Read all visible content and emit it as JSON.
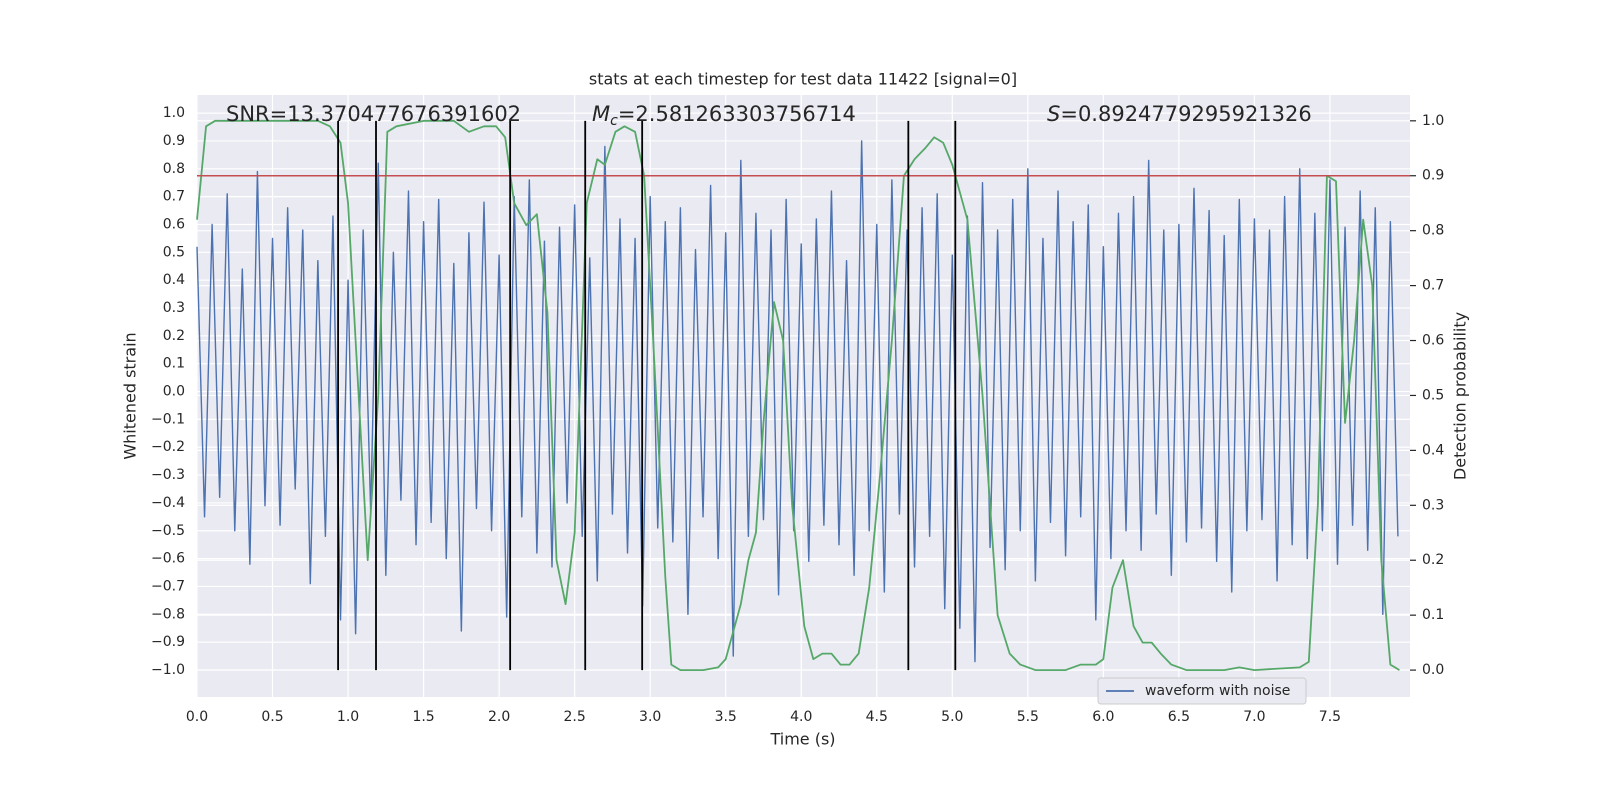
{
  "chart_data": {
    "type": "line",
    "title": "stats at each timestep for test data 11422 [signal=0]",
    "xlabel": "Time (s)",
    "ylabel": "Whitened strain",
    "y2label": "Detection probability",
    "grid": true,
    "legend": "lower right",
    "xlim": [
      0,
      8.03
    ],
    "ylim": [
      -1.097,
      1.065
    ],
    "y2lim": [
      -0.049,
      1.047
    ],
    "xticks": [
      {
        "value": 0,
        "label": "0.0"
      },
      0.5,
      {
        "value": 1,
        "label": "1.0"
      },
      1.5,
      {
        "value": 2,
        "label": "2.0"
      },
      2.5,
      {
        "value": 3,
        "label": "3.0"
      },
      3.5,
      {
        "value": 4,
        "label": "4.0"
      },
      4.5,
      {
        "value": 5,
        "label": "5.0"
      },
      5.5,
      {
        "value": 6,
        "label": "6.0"
      },
      6.5,
      {
        "value": 7,
        "label": "7.0"
      },
      7.5
    ],
    "yticks": [
      {
        "value": -1,
        "label": "−1.0"
      },
      {
        "value": -0.9,
        "label": "−0.9"
      },
      {
        "value": -0.8,
        "label": "−0.8"
      },
      {
        "value": -0.7,
        "label": "−0.7"
      },
      {
        "value": -0.6,
        "label": "−0.6"
      },
      {
        "value": -0.5,
        "label": "−0.5"
      },
      {
        "value": -0.4,
        "label": "−0.4"
      },
      {
        "value": -0.3,
        "label": "−0.3"
      },
      {
        "value": -0.2,
        "label": "−0.2"
      },
      {
        "value": -0.1,
        "label": "−0.1"
      },
      {
        "value": 0,
        "label": "0.0"
      },
      0.1,
      0.2,
      0.3,
      0.4,
      0.5,
      0.6,
      0.7,
      0.8,
      0.9,
      {
        "value": 1,
        "label": "1.0"
      }
    ],
    "y2ticks": [
      {
        "value": 0,
        "label": "0.0"
      },
      0.1,
      0.2,
      0.3,
      0.4,
      0.5,
      0.6,
      0.7,
      0.8,
      0.9,
      {
        "value": 1,
        "label": "1.0"
      }
    ],
    "threshold": 0.9,
    "threshold_color": "#c44e52",
    "vlines": [
      0.934,
      1.185,
      2.073,
      2.57,
      2.947,
      4.709,
      5.02
    ],
    "vline_color": "#000000",
    "annotations": [
      {
        "text": "SNR=13.370477676391602"
      },
      {
        "symbol": "M",
        "subscript": "c",
        "text": "=2.581263303756714"
      },
      {
        "symbol": "S",
        "text": "=0.8924779295921326"
      }
    ],
    "series": [
      {
        "name": "waveform with noise",
        "color": "#4c72b0",
        "x": [
          0,
          0.05,
          0.1,
          0.15,
          0.2,
          0.25,
          0.3,
          0.35,
          0.4,
          0.45,
          0.5,
          0.55,
          0.6,
          0.65,
          0.7,
          0.75,
          0.8,
          0.85,
          0.9,
          0.95,
          1,
          1.05,
          1.1,
          1.15,
          1.2,
          1.25,
          1.3,
          1.35,
          1.4,
          1.45,
          1.5,
          1.55,
          1.6,
          1.65,
          1.7,
          1.75,
          1.8,
          1.85,
          1.9,
          1.95,
          2,
          2.05,
          2.1,
          2.15,
          2.2,
          2.25,
          2.3,
          2.35,
          2.4,
          2.45,
          2.5,
          2.55,
          2.6,
          2.65,
          2.7,
          2.75,
          2.8,
          2.85,
          2.9,
          2.95,
          3,
          3.05,
          3.1,
          3.15,
          3.2,
          3.25,
          3.3,
          3.35,
          3.4,
          3.45,
          3.5,
          3.55,
          3.6,
          3.65,
          3.7,
          3.75,
          3.8,
          3.85,
          3.9,
          3.95,
          4,
          4.05,
          4.1,
          4.15,
          4.2,
          4.25,
          4.3,
          4.35,
          4.4,
          4.45,
          4.5,
          4.55,
          4.6,
          4.65,
          4.7,
          4.75,
          4.8,
          4.85,
          4.9,
          4.95,
          5,
          5.05,
          5.1,
          5.15,
          5.2,
          5.25,
          5.3,
          5.35,
          5.4,
          5.45,
          5.5,
          5.55,
          5.6,
          5.65,
          5.7,
          5.75,
          5.8,
          5.85,
          5.9,
          5.95,
          6,
          6.05,
          6.1,
          6.15,
          6.2,
          6.25,
          6.3,
          6.35,
          6.4,
          6.45,
          6.5,
          6.55,
          6.6,
          6.65,
          6.7,
          6.75,
          6.8,
          6.85,
          6.9,
          6.95,
          7,
          7.05,
          7.1,
          7.15,
          7.2,
          7.25,
          7.3,
          7.35,
          7.4,
          7.45,
          7.5,
          7.55,
          7.6,
          7.65,
          7.7,
          7.75,
          7.8,
          7.85,
          7.9,
          7.95
        ],
        "values": [
          0.52,
          -0.45,
          0.6,
          -0.38,
          0.71,
          -0.5,
          0.44,
          -0.62,
          0.79,
          -0.41,
          0.55,
          -0.48,
          0.66,
          -0.35,
          0.58,
          -0.69,
          0.47,
          -0.52,
          0.63,
          -0.82,
          0.4,
          -0.87,
          0.58,
          -0.44,
          0.82,
          -0.66,
          0.5,
          -0.39,
          0.72,
          -0.55,
          0.61,
          -0.47,
          0.69,
          -0.6,
          0.46,
          -0.86,
          0.57,
          -0.42,
          0.68,
          -0.5,
          0.49,
          -0.81,
          0.7,
          -0.45,
          0.76,
          -0.58,
          0.54,
          -0.63,
          0.59,
          -0.4,
          0.67,
          -0.52,
          0.48,
          -0.68,
          0.88,
          -0.44,
          0.62,
          -0.58,
          0.55,
          -0.77,
          0.7,
          -0.49,
          0.61,
          -0.54,
          0.66,
          -0.8,
          0.51,
          -0.45,
          0.74,
          -0.6,
          0.57,
          -0.95,
          0.83,
          -0.52,
          0.64,
          -0.46,
          0.58,
          -0.73,
          0.69,
          -0.5,
          0.53,
          -0.61,
          0.62,
          -0.48,
          0.72,
          -0.55,
          0.47,
          -0.66,
          0.9,
          -0.5,
          0.6,
          -0.72,
          0.76,
          -0.44,
          0.58,
          -0.63,
          0.66,
          -0.52,
          0.71,
          -0.78,
          0.49,
          -0.85,
          0.63,
          -0.97,
          0.75,
          -0.56,
          0.58,
          -0.64,
          0.69,
          -0.5,
          0.8,
          -0.68,
          0.55,
          -0.47,
          0.72,
          -0.59,
          0.61,
          -0.45,
          0.67,
          -0.82,
          0.52,
          -0.6,
          0.64,
          -0.5,
          0.7,
          -0.57,
          0.83,
          -0.44,
          0.58,
          -0.66,
          0.6,
          -0.54,
          0.73,
          -0.49,
          0.65,
          -0.61,
          0.56,
          -0.72,
          0.69,
          -0.5,
          0.62,
          -0.46,
          0.58,
          -0.68,
          0.7,
          -0.55,
          0.8,
          -0.6,
          0.64,
          -0.5,
          0.76,
          -0.62,
          0.59,
          -0.48,
          0.72,
          -0.57,
          0.66,
          -0.8,
          0.61,
          -0.52
        ]
      },
      {
        "color": "#55a868",
        "axis": "y2",
        "x": [
          0,
          0.06,
          0.12,
          0.3,
          0.6,
          0.8,
          0.88,
          0.95,
          1,
          1.05,
          1.1,
          1.13,
          1.2,
          1.26,
          1.32,
          1.5,
          1.7,
          1.8,
          1.9,
          1.98,
          2.04,
          2.1,
          2.18,
          2.25,
          2.32,
          2.38,
          2.44,
          2.5,
          2.58,
          2.65,
          2.7,
          2.77,
          2.83,
          2.9,
          2.96,
          3.02,
          3.1,
          3.14,
          3.2,
          3.35,
          3.45,
          3.5,
          3.6,
          3.65,
          3.7,
          3.75,
          3.82,
          3.88,
          3.94,
          4.02,
          4.08,
          4.14,
          4.2,
          4.26,
          4.32,
          4.38,
          4.45,
          4.52,
          4.6,
          4.68,
          4.75,
          4.82,
          4.88,
          4.94,
          5,
          5.1,
          5.2,
          5.3,
          5.38,
          5.45,
          5.55,
          5.75,
          5.85,
          5.95,
          6,
          6.06,
          6.13,
          6.2,
          6.26,
          6.32,
          6.38,
          6.45,
          6.55,
          6.8,
          6.9,
          7,
          7.3,
          7.36,
          7.42,
          7.48,
          7.54,
          7.6,
          7.66,
          7.72,
          7.78,
          7.84,
          7.9,
          7.96
        ],
        "values": [
          0.82,
          0.99,
          1,
          1,
          1,
          1,
          0.99,
          0.96,
          0.85,
          0.6,
          0.35,
          0.2,
          0.5,
          0.98,
          0.99,
          1,
          1,
          0.98,
          0.99,
          0.99,
          0.97,
          0.85,
          0.81,
          0.83,
          0.65,
          0.2,
          0.12,
          0.25,
          0.85,
          0.93,
          0.92,
          0.98,
          0.99,
          0.98,
          0.9,
          0.6,
          0.17,
          0.01,
          0,
          0,
          0.005,
          0.02,
          0.12,
          0.2,
          0.25,
          0.45,
          0.67,
          0.6,
          0.3,
          0.08,
          0.02,
          0.03,
          0.03,
          0.01,
          0.01,
          0.03,
          0.15,
          0.35,
          0.6,
          0.9,
          0.93,
          0.95,
          0.97,
          0.96,
          0.92,
          0.82,
          0.5,
          0.1,
          0.03,
          0.01,
          0,
          0,
          0.01,
          0.01,
          0.02,
          0.15,
          0.2,
          0.08,
          0.05,
          0.05,
          0.03,
          0.01,
          0,
          0,
          0.005,
          0,
          0.005,
          0.015,
          0.3,
          0.9,
          0.89,
          0.45,
          0.6,
          0.82,
          0.7,
          0.2,
          0.01,
          0
        ]
      }
    ]
  }
}
